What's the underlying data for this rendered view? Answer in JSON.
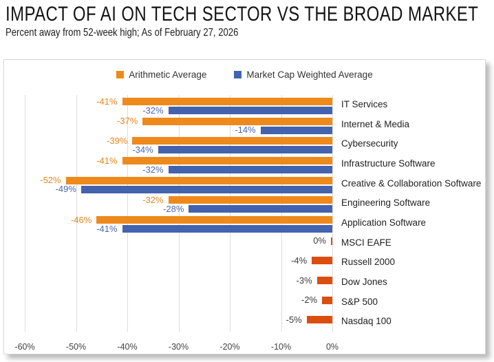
{
  "header": {
    "title": "IMPACT OF AI ON TECH SECTOR VS THE BROAD MARKET",
    "subtitle": "Percent away from 52-week high; As of February 27, 2026"
  },
  "chart_data": {
    "type": "bar",
    "orientation": "horizontal",
    "title": "IMPACT OF AI ON TECH SECTOR VS THE BROAD MARKET",
    "subtitle": "Percent away from 52-week high; As of February 27, 2026",
    "unit": "percent",
    "xlim": [
      -60,
      0
    ],
    "grid": "vertical",
    "legend_position": "top-center",
    "legend": [
      {
        "key": "arithmetic",
        "label": "Arithmetic Average",
        "color": "#EE8A1C"
      },
      {
        "key": "weighted",
        "label": "Market Cap Weighted Average",
        "color": "#4363AE"
      }
    ],
    "series_colors": {
      "arithmetic": "#EE8A1C",
      "weighted": "#4363AE",
      "index": "#DB4E0F"
    },
    "value_label_colors": {
      "arithmetic": "#E8861B",
      "weighted": "#4A67B2",
      "index": "#3C3C3C"
    },
    "x_axis": {
      "tick_values": [
        -60,
        -50,
        -40,
        -30,
        -20,
        -10,
        0
      ],
      "tick_labels": [
        "-60%",
        "-50%",
        "-40%",
        "-30%",
        "-20%",
        "-10%",
        "0%"
      ]
    },
    "categories": [
      "IT Services",
      "Internet & Media",
      "Cybersecurity",
      "Infrastructure Software",
      "Creative & Collaboration Software",
      "Engineering Software",
      "Application Software",
      "MSCI EAFE",
      "Russell 2000",
      "Dow Jones",
      "S&P 500",
      "Nasdaq 100"
    ],
    "rows": [
      {
        "category": "IT Services",
        "bars": [
          {
            "series": "arithmetic",
            "value": -41,
            "label": "-41%"
          },
          {
            "series": "weighted",
            "value": -32,
            "label": "-32%"
          }
        ]
      },
      {
        "category": "Internet & Media",
        "bars": [
          {
            "series": "arithmetic",
            "value": -37,
            "label": "-37%"
          },
          {
            "series": "weighted",
            "value": -14,
            "label": "-14%"
          }
        ]
      },
      {
        "category": "Cybersecurity",
        "bars": [
          {
            "series": "arithmetic",
            "value": -39,
            "label": "-39%"
          },
          {
            "series": "weighted",
            "value": -34,
            "label": "-34%"
          }
        ]
      },
      {
        "category": "Infrastructure Software",
        "bars": [
          {
            "series": "arithmetic",
            "value": -41,
            "label": "-41%"
          },
          {
            "series": "weighted",
            "value": -32,
            "label": "-32%"
          }
        ]
      },
      {
        "category": "Creative & Collaboration Software",
        "bars": [
          {
            "series": "arithmetic",
            "value": -52,
            "label": "-52%"
          },
          {
            "series": "weighted",
            "value": -49,
            "label": "-49%"
          }
        ]
      },
      {
        "category": "Engineering Software",
        "bars": [
          {
            "series": "arithmetic",
            "value": -32,
            "label": "-32%"
          },
          {
            "series": "weighted",
            "value": -28,
            "label": "-28%"
          }
        ]
      },
      {
        "category": "Application Software",
        "bars": [
          {
            "series": "arithmetic",
            "value": -46,
            "label": "-46%"
          },
          {
            "series": "weighted",
            "value": -41,
            "label": "-41%"
          }
        ]
      },
      {
        "category": "MSCI EAFE",
        "bars": [
          {
            "series": "index",
            "value": 0,
            "label": "0%"
          }
        ]
      },
      {
        "category": "Russell 2000",
        "bars": [
          {
            "series": "index",
            "value": -4,
            "label": "-4%"
          }
        ]
      },
      {
        "category": "Dow Jones",
        "bars": [
          {
            "series": "index",
            "value": -3,
            "label": "-3%"
          }
        ]
      },
      {
        "category": "S&P 500",
        "bars": [
          {
            "series": "index",
            "value": -2,
            "label": "-2%"
          }
        ]
      },
      {
        "category": "Nasdaq 100",
        "bars": [
          {
            "series": "index",
            "value": -5,
            "label": "-5%"
          }
        ]
      }
    ]
  }
}
